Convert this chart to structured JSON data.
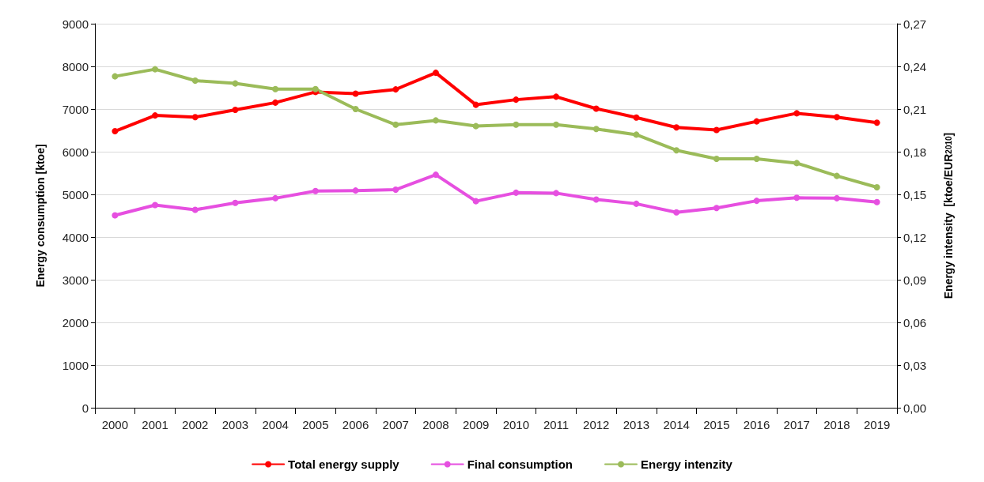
{
  "chart_data": {
    "type": "line",
    "ylabel": "Energy consumption [ktoe]",
    "y2label": "Energy intensity  [ktoe/EUR$_{2010}$]",
    "categories": [
      "2000",
      "2001",
      "2002",
      "2003",
      "2004",
      "2005",
      "2006",
      "2007",
      "2008",
      "2009",
      "2010",
      "2011",
      "2012",
      "2013",
      "2014",
      "2015",
      "2016",
      "2017",
      "2018",
      "2019"
    ],
    "series": [
      {
        "name": "Total energy supply",
        "color": "#ff0000",
        "values": [
          6480,
          6850,
          6810,
          6980,
          7150,
          7400,
          7360,
          7460,
          7850,
          7100,
          7220,
          7290,
          7010,
          6800,
          6570,
          6510,
          6710,
          6900,
          6810,
          6680
        ]
      },
      {
        "name": "Final consumption",
        "color": "#e64fe0",
        "values": [
          4510,
          4750,
          4640,
          4800,
          4910,
          5080,
          5090,
          5110,
          5460,
          4840,
          5040,
          5030,
          4880,
          4780,
          4580,
          4680,
          4850,
          4920,
          4910,
          4820
        ]
      },
      {
        "name": "Energy intenzity",
        "color": "#9bbb59",
        "axis": "y2",
        "values": [
          0.233,
          0.238,
          0.23,
          0.228,
          0.224,
          0.224,
          0.21,
          0.199,
          0.202,
          0.198,
          0.199,
          0.199,
          0.196,
          0.192,
          0.181,
          0.175,
          0.175,
          0.172,
          0.163,
          0.155
        ]
      }
    ],
    "ylim": [
      0,
      9000
    ],
    "yticks": [
      0,
      1000,
      2000,
      3000,
      4000,
      5000,
      6000,
      7000,
      8000,
      9000
    ],
    "y2lim": [
      0,
      0.27
    ],
    "y2ticks": [
      {
        "value": 0,
        "label": "0,00"
      },
      {
        "value": 0.03,
        "label": "0,03"
      },
      {
        "value": 0.06,
        "label": "0,06"
      },
      {
        "value": 0.09,
        "label": "0,09"
      },
      {
        "value": 0.12,
        "label": "0,12"
      },
      {
        "value": 0.15,
        "label": "0,15"
      },
      {
        "value": 0.18,
        "label": "0,18"
      },
      {
        "value": 0.21,
        "label": "0,21"
      },
      {
        "value": 0.24,
        "label": "0,24"
      },
      {
        "value": 0.27,
        "label": "0,27"
      }
    ],
    "grid": "y",
    "legend": "bottom",
    "marker": "circle",
    "line_style": "solid"
  }
}
